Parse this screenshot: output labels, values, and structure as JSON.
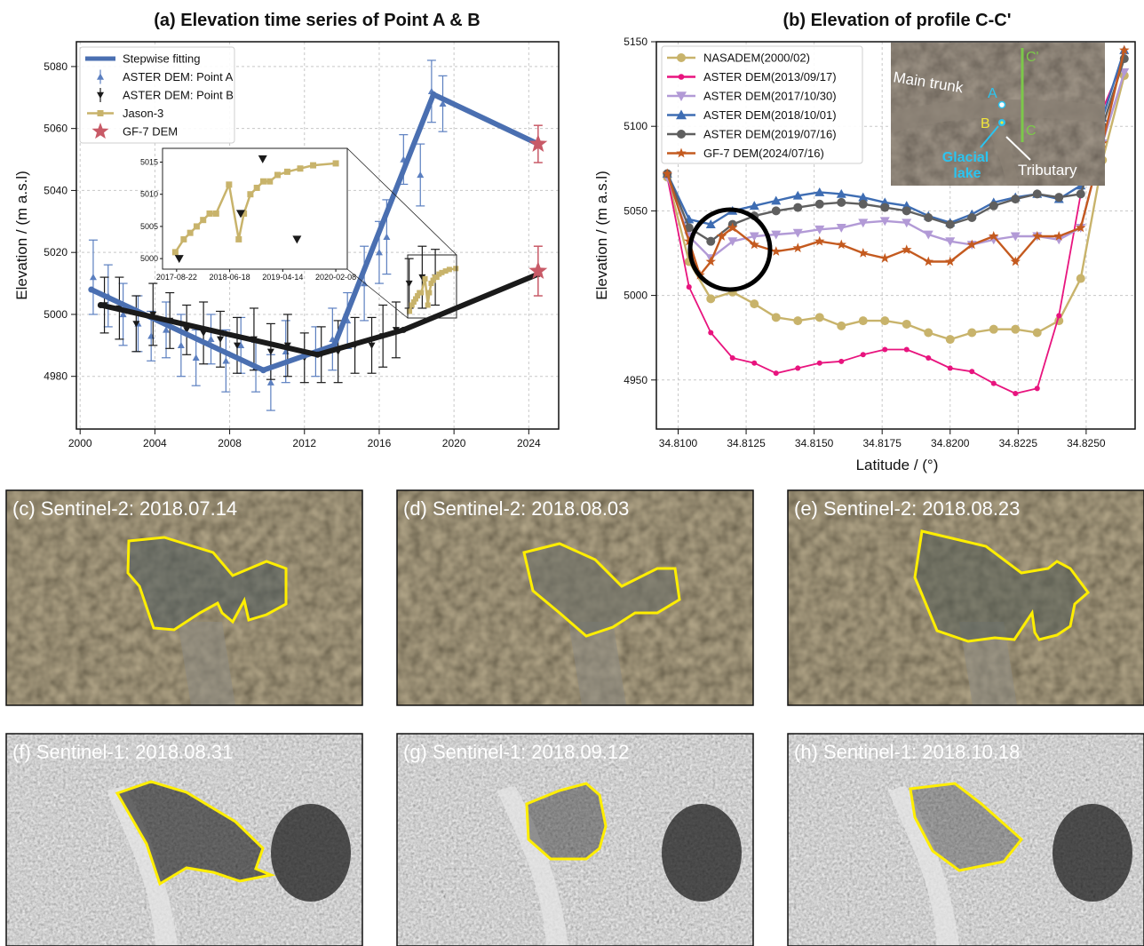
{
  "chart_data": [
    {
      "id": "a",
      "type": "line",
      "title": "(a) Elevation time series of Point A & B",
      "xlabel": "",
      "ylabel": "Elevation / (m a.s.l)",
      "xlim": [
        1999.8,
        2025.6
      ],
      "ylim": [
        4963,
        5088
      ],
      "xticks": [
        2000,
        2004,
        2008,
        2012,
        2016,
        2020,
        2024
      ],
      "yticks": [
        4980,
        5000,
        5020,
        5040,
        5060,
        5080
      ],
      "grid": true,
      "legend": "top-left",
      "series": [
        {
          "name": "Stepwise fitting",
          "kind": "line",
          "color": "#4a6fb1",
          "x": [
            2000.6,
            2009.8,
            2013.6,
            2018.9,
            2024.5
          ],
          "y": [
            5008,
            4982,
            4990,
            5071,
            5055
          ]
        },
        {
          "name": "",
          "kind": "line",
          "color": "#1a1a1a",
          "x": [
            2001.1,
            2012.7,
            2017.3,
            2024.5
          ],
          "y": [
            5003,
            4987,
            4995,
            5013
          ]
        },
        {
          "name": "ASTER DEM: Point A",
          "kind": "errorbar",
          "color": "#5b7fc0",
          "x": [
            2000.7,
            2001.5,
            2002.3,
            2003.1,
            2003.8,
            2004.6,
            2005.4,
            2006.2,
            2007.0,
            2007.8,
            2008.6,
            2009.4,
            2010.2,
            2011.0,
            2012.6,
            2013.5,
            2014.3,
            2015.2,
            2016.0,
            2016.4,
            2017.3,
            2018.2,
            2018.8,
            2019.4
          ],
          "y": [
            5012,
            5006,
            5000,
            4997,
            4993,
            4995,
            4990,
            4986,
            4992,
            4985,
            4990,
            4983,
            4978,
            4988,
            4988,
            4992,
            4998,
            5010,
            5020,
            5025,
            5050,
            5045,
            5072,
            5068
          ],
          "err": [
            12,
            10,
            10,
            9,
            8,
            9,
            10,
            9,
            8,
            10,
            9,
            8,
            9,
            10,
            8,
            10,
            9,
            12,
            10,
            12,
            8,
            10,
            10,
            9
          ]
        },
        {
          "name": "ASTER DEM: Point B",
          "kind": "errorbar",
          "color": "#1a1a1a",
          "x": [
            2001.3,
            2002.1,
            2003.0,
            2003.9,
            2004.8,
            2005.7,
            2006.6,
            2007.5,
            2008.4,
            2009.3,
            2010.2,
            2011.1,
            2012.0,
            2012.9,
            2013.8,
            2014.7,
            2015.6,
            2016.2,
            2016.9,
            2017.6,
            2018.3,
            2019.0
          ],
          "y": [
            5003,
            5002,
            4997,
            5000,
            4998,
            4995,
            4994,
            4992,
            4990,
            4992,
            4988,
            4990,
            4986,
            4987,
            4988,
            4990,
            4990,
            4993,
            4995,
            5010,
            5012,
            5012
          ],
          "err": [
            9,
            10,
            9,
            10,
            9,
            8,
            10,
            9,
            9,
            10,
            9,
            10,
            8,
            9,
            10,
            9,
            9,
            10,
            9,
            8,
            10,
            9
          ]
        },
        {
          "name": "Jason-3",
          "kind": "line",
          "color": "#c8b36b",
          "x": [
            2017.62,
            2017.75,
            2017.85,
            2017.95,
            2018.05,
            2018.15,
            2018.25,
            2018.45,
            2018.6,
            2018.68,
            2018.78,
            2018.88,
            2018.98,
            2019.08,
            2019.2,
            2019.35,
            2019.55,
            2019.75,
            2020.1
          ],
          "y": [
            5001,
            5003,
            5004,
            5005,
            5006,
            5007,
            5007,
            5011.5,
            5003,
            5007,
            5010,
            5011,
            5012,
            5012,
            5013,
            5013.5,
            5014,
            5014.5,
            5014.8
          ]
        },
        {
          "name": "GF-7 DEM",
          "kind": "star",
          "color": "#c85a67",
          "x": [
            2024.5,
            2024.5
          ],
          "y": [
            5055,
            5014
          ],
          "err": [
            6,
            8
          ]
        }
      ],
      "inset": {
        "type": "line",
        "xticks": [
          "2017-08-22",
          "2018-06-18",
          "2019-04-14",
          "2020-02-08"
        ],
        "yticks": [
          5000,
          5005,
          5010,
          5015
        ],
        "ylim": [
          4998.5,
          5017
        ],
        "jason": {
          "x": [
            2017.62,
            2017.75,
            2017.85,
            2017.95,
            2018.05,
            2018.15,
            2018.25,
            2018.45,
            2018.6,
            2018.68,
            2018.78,
            2018.88,
            2018.98,
            2019.08,
            2019.2,
            2019.35,
            2019.55,
            2019.75,
            2020.1
          ],
          "y": [
            5001,
            5003,
            5004,
            5005,
            5006,
            5007,
            5007,
            5011.5,
            5003,
            5007,
            5010,
            5011,
            5012,
            5012,
            5013,
            5013.5,
            5014,
            5014.5,
            5014.8
          ]
        },
        "pointB": {
          "x": [
            2017.68,
            2018.63,
            2018.97,
            2019.5
          ],
          "y": [
            5000,
            5007,
            5015.5,
            5003
          ]
        }
      }
    },
    {
      "id": "b",
      "type": "line",
      "title": "(b) Elevation of profile C-C'",
      "xlabel": "Latitude / (°)",
      "ylabel": "Elevation / (m a.s.l)",
      "xlim": [
        34.8092,
        34.8268
      ],
      "ylim": [
        4921,
        5150
      ],
      "xticks": [
        34.81,
        34.8125,
        34.815,
        34.8175,
        34.82,
        34.8225,
        34.825
      ],
      "xticklabels": [
        "34.8100",
        "34.8125",
        "34.8150",
        "34.8175",
        "34.8200",
        "34.8225",
        "34.8250"
      ],
      "yticks": [
        4950,
        5000,
        5050,
        5100,
        5150
      ],
      "grid": true,
      "legend": "top-left",
      "series": [
        {
          "name": "NASADEM(2000/02)",
          "color": "#c8b36b",
          "marker": "circle",
          "x": [
            34.8096,
            34.8104,
            34.8112,
            34.812,
            34.8128,
            34.8136,
            34.8144,
            34.8152,
            34.816,
            34.8168,
            34.8176,
            34.8184,
            34.8192,
            34.82,
            34.8208,
            34.8216,
            34.8224,
            34.8232,
            34.824,
            34.8248,
            34.8256,
            34.8264
          ],
          "y": [
            5070,
            5020,
            4998,
            5002,
            4995,
            4987,
            4985,
            4987,
            4982,
            4985,
            4985,
            4983,
            4978,
            4974,
            4978,
            4980,
            4980,
            4978,
            4985,
            5010,
            5080,
            5130
          ]
        },
        {
          "name": "ASTER DEM(2013/09/17)",
          "color": "#e8147e",
          "marker": "dot",
          "x": [
            34.8096,
            34.8104,
            34.8112,
            34.812,
            34.8128,
            34.8136,
            34.8144,
            34.8152,
            34.816,
            34.8168,
            34.8176,
            34.8184,
            34.8192,
            34.82,
            34.8208,
            34.8216,
            34.8224,
            34.8232,
            34.824,
            34.8248,
            34.8256,
            34.8264
          ],
          "y": [
            5070,
            5005,
            4978,
            4963,
            4960,
            4954,
            4957,
            4960,
            4961,
            4965,
            4968,
            4968,
            4963,
            4957,
            4955,
            4948,
            4942,
            4945,
            4988,
            5060,
            5110,
            5140
          ]
        },
        {
          "name": "ASTER DEM(2017/10/30)",
          "color": "#b29ad6",
          "marker": "tri-down",
          "x": [
            34.8096,
            34.8104,
            34.8112,
            34.812,
            34.8128,
            34.8136,
            34.8144,
            34.8152,
            34.816,
            34.8168,
            34.8176,
            34.8184,
            34.8192,
            34.82,
            34.8208,
            34.8216,
            34.8224,
            34.8232,
            34.824,
            34.8248,
            34.8256,
            34.8264
          ],
          "y": [
            5070,
            5035,
            5022,
            5032,
            5035,
            5036,
            5037,
            5039,
            5040,
            5043,
            5044,
            5043,
            5036,
            5032,
            5030,
            5033,
            5035,
            5035,
            5033,
            5040,
            5090,
            5132
          ]
        },
        {
          "name": "ASTER DEM(2018/10/01)",
          "color": "#3e6db3",
          "marker": "tri-up",
          "x": [
            34.8096,
            34.8104,
            34.8112,
            34.812,
            34.8128,
            34.8136,
            34.8144,
            34.8152,
            34.816,
            34.8168,
            34.8176,
            34.8184,
            34.8192,
            34.82,
            34.8208,
            34.8216,
            34.8224,
            34.8232,
            34.824,
            34.8248,
            34.8256,
            34.8264
          ],
          "y": [
            5072,
            5045,
            5042,
            5050,
            5053,
            5056,
            5059,
            5061,
            5060,
            5058,
            5055,
            5053,
            5047,
            5043,
            5048,
            5055,
            5058,
            5060,
            5057,
            5065,
            5105,
            5145
          ]
        },
        {
          "name": "ASTER DEM(2019/07/16)",
          "color": "#5f5f5f",
          "marker": "circle",
          "x": [
            34.8096,
            34.8104,
            34.8112,
            34.812,
            34.8128,
            34.8136,
            34.8144,
            34.8152,
            34.816,
            34.8168,
            34.8176,
            34.8184,
            34.8192,
            34.82,
            34.8208,
            34.8216,
            34.8224,
            34.8232,
            34.824,
            34.8248,
            34.8256,
            34.8264
          ],
          "y": [
            5072,
            5040,
            5032,
            5042,
            5047,
            5050,
            5052,
            5054,
            5055,
            5054,
            5052,
            5050,
            5046,
            5042,
            5046,
            5053,
            5057,
            5060,
            5058,
            5060,
            5100,
            5140
          ]
        },
        {
          "name": "GF-7 DEM(2024/07/16)",
          "color": "#c45a1f",
          "marker": "star",
          "x": [
            34.8096,
            34.8104,
            34.8108,
            34.8112,
            34.8116,
            34.812,
            34.8128,
            34.8136,
            34.8144,
            34.8152,
            34.816,
            34.8168,
            34.8176,
            34.8184,
            34.8192,
            34.82,
            34.8208,
            34.8216,
            34.8224,
            34.8232,
            34.824,
            34.8248,
            34.8256,
            34.8264
          ],
          "y": [
            5072,
            5032,
            5012,
            5020,
            5035,
            5040,
            5030,
            5026,
            5028,
            5032,
            5030,
            5025,
            5022,
            5027,
            5020,
            5020,
            5030,
            5035,
            5020,
            5035,
            5035,
            5040,
            5090,
            5145
          ]
        }
      ],
      "inset": {
        "labels": {
          "main_trunk": "Main trunk",
          "a": "A",
          "b": "B",
          "c_top": "C'",
          "c_bottom": "C",
          "glacial_line1": "Glacial",
          "glacial_line2": "lake",
          "tributary": "Tributary"
        }
      }
    }
  ],
  "panels": [
    {
      "label": "(c) Sentinel-2: 2018.07.14"
    },
    {
      "label": "(d) Sentinel-2: 2018.08.03"
    },
    {
      "label": "(e) Sentinel-2: 2018.08.23"
    },
    {
      "label": "(f) Sentinel-1: 2018.08.31"
    },
    {
      "label": "(g) Sentinel-1: 2018.09.12"
    },
    {
      "label": "(h) Sentinel-1: 2018.10.18"
    }
  ],
  "colors": {
    "outline": "#ffee00",
    "accent_b_inset": "#2bc4f0"
  }
}
